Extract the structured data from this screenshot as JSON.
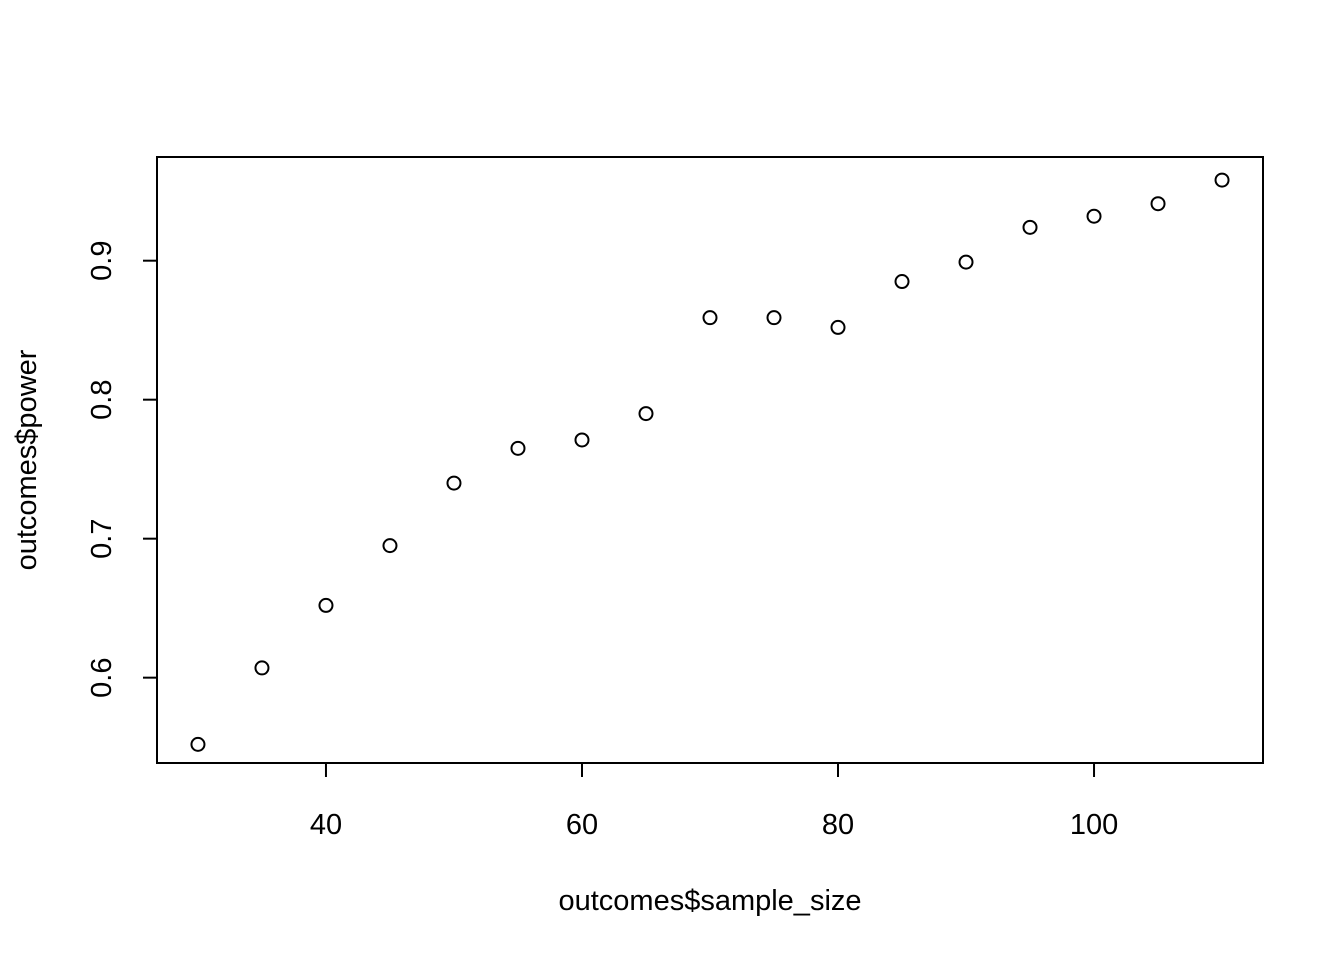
{
  "chart_data": {
    "type": "scatter",
    "title": "",
    "xlabel": "outcomes$sample_size",
    "ylabel": "outcomes$power",
    "xlim": [
      26.8,
      113.2
    ],
    "ylim": [
      0.5386,
      0.9746
    ],
    "xticks": [
      40,
      60,
      80,
      100
    ],
    "yticks": [
      0.6,
      0.7,
      0.8,
      0.9
    ],
    "xtick_labels": [
      "40",
      "60",
      "80",
      "100"
    ],
    "ytick_labels": [
      "0.6",
      "0.7",
      "0.8",
      "0.9"
    ],
    "grid": false,
    "legend": "none",
    "marker": "open-circle",
    "point_color": "#000000",
    "points": [
      {
        "x": 30,
        "y": 0.552
      },
      {
        "x": 35,
        "y": 0.607
      },
      {
        "x": 40,
        "y": 0.652
      },
      {
        "x": 45,
        "y": 0.695
      },
      {
        "x": 50,
        "y": 0.74
      },
      {
        "x": 55,
        "y": 0.765
      },
      {
        "x": 60,
        "y": 0.771
      },
      {
        "x": 65,
        "y": 0.79
      },
      {
        "x": 70,
        "y": 0.859
      },
      {
        "x": 75,
        "y": 0.859
      },
      {
        "x": 80,
        "y": 0.852
      },
      {
        "x": 85,
        "y": 0.885
      },
      {
        "x": 90,
        "y": 0.899
      },
      {
        "x": 95,
        "y": 0.924
      },
      {
        "x": 100,
        "y": 0.932
      },
      {
        "x": 105,
        "y": 0.941
      },
      {
        "x": 110,
        "y": 0.958
      }
    ]
  }
}
